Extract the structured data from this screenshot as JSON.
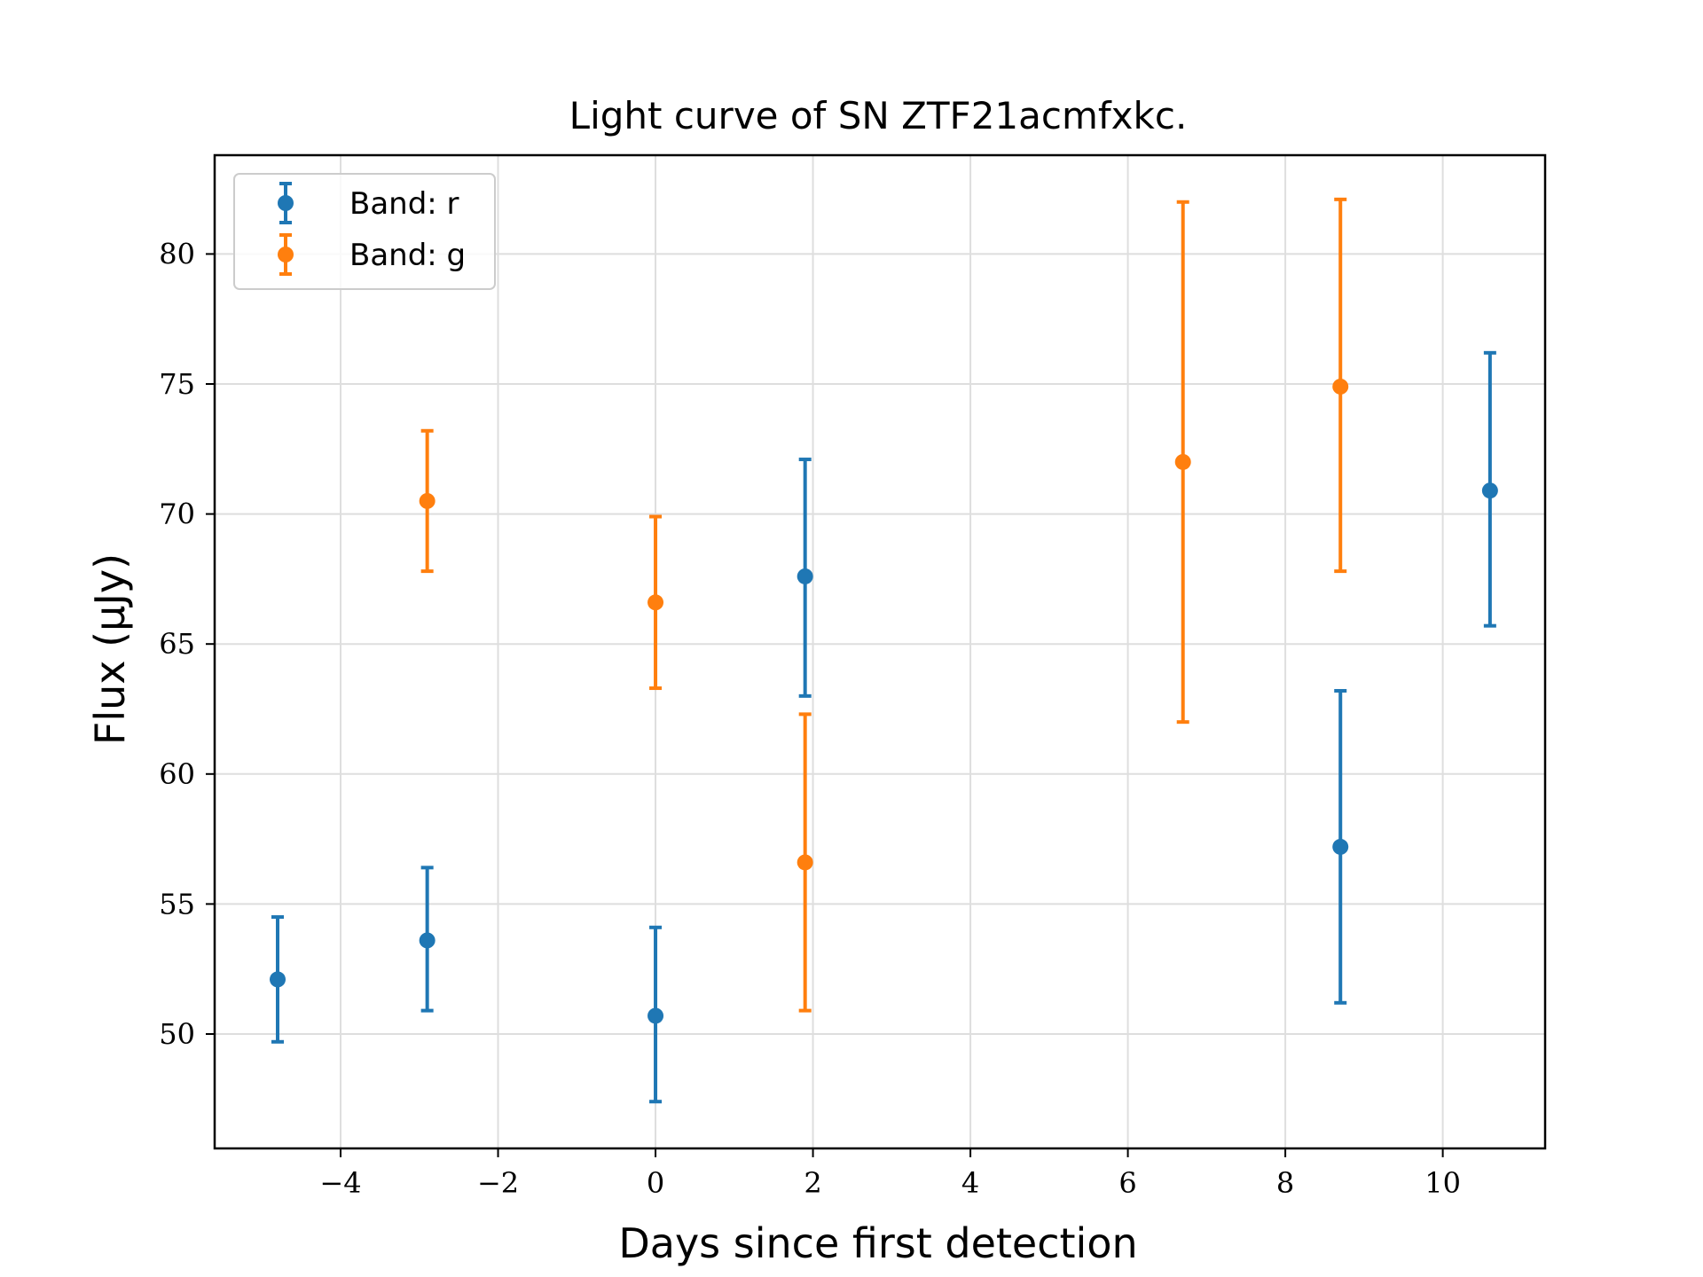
{
  "chart_data": {
    "type": "scatter",
    "title": "Light curve of SN ZTF21acmfxkc.",
    "xlabel": "Days since first detection",
    "ylabel": "Flux (μJy)",
    "xlim": [
      -5.6,
      11.3
    ],
    "ylim": [
      45.6,
      83.8
    ],
    "xticks": [
      -4,
      -2,
      0,
      2,
      4,
      6,
      8,
      10
    ],
    "xtick_labels": [
      "−4",
      "−2",
      "0",
      "2",
      "4",
      "6",
      "8",
      "10"
    ],
    "yticks": [
      50,
      55,
      60,
      65,
      70,
      75,
      80
    ],
    "ytick_labels": [
      "50",
      "55",
      "60",
      "65",
      "70",
      "75",
      "80"
    ],
    "grid": true,
    "legend_position": "top-left",
    "series": [
      {
        "name": "Band: r",
        "color": "#1f77b4",
        "points": [
          {
            "x": -4.8,
            "y": 52.1,
            "err_low": 49.7,
            "err_high": 54.5
          },
          {
            "x": -2.9,
            "y": 53.6,
            "err_low": 50.9,
            "err_high": 56.4
          },
          {
            "x": 0.0,
            "y": 50.7,
            "err_low": 47.4,
            "err_high": 54.1
          },
          {
            "x": 1.9,
            "y": 67.6,
            "err_low": 63.0,
            "err_high": 72.1
          },
          {
            "x": 8.7,
            "y": 57.2,
            "err_low": 51.2,
            "err_high": 63.2
          },
          {
            "x": 10.6,
            "y": 70.9,
            "err_low": 65.7,
            "err_high": 76.2
          }
        ]
      },
      {
        "name": "Band: g",
        "color": "#ff7f0e",
        "points": [
          {
            "x": -2.9,
            "y": 70.5,
            "err_low": 67.8,
            "err_high": 73.2
          },
          {
            "x": 0.0,
            "y": 66.6,
            "err_low": 63.3,
            "err_high": 69.9
          },
          {
            "x": 1.9,
            "y": 56.6,
            "err_low": 50.9,
            "err_high": 62.3
          },
          {
            "x": 6.7,
            "y": 72.0,
            "err_low": 62.0,
            "err_high": 82.0
          },
          {
            "x": 8.7,
            "y": 74.9,
            "err_low": 67.8,
            "err_high": 82.1
          }
        ]
      }
    ]
  }
}
